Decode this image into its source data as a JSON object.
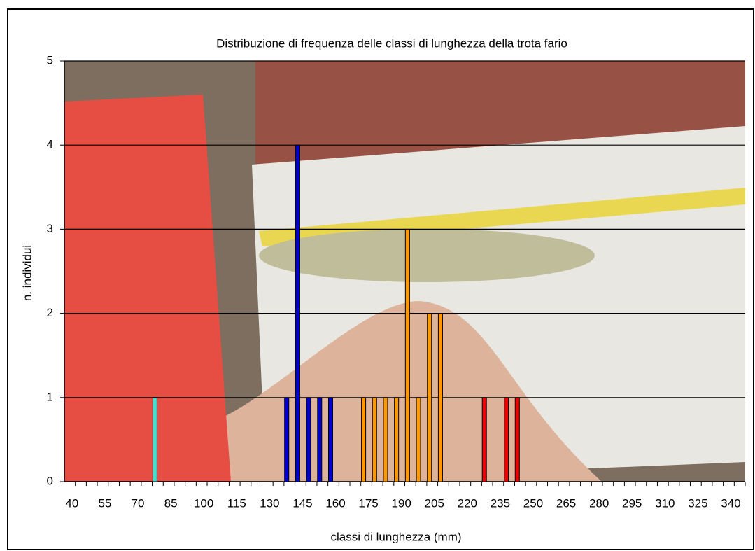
{
  "chart_data": {
    "type": "bar",
    "title": "Distribuzione di frequenza delle classi di lunghezza della trota fario",
    "x_label": "classi di lunghezza (mm)",
    "y_label": "n. individui",
    "categories": [
      "40",
      null,
      null,
      "55",
      null,
      null,
      "70",
      null,
      null,
      "85",
      null,
      null,
      "100",
      null,
      null,
      "115",
      null,
      null,
      "130",
      null,
      null,
      "145",
      null,
      null,
      "160",
      null,
      null,
      "175",
      null,
      null,
      "190",
      null,
      null,
      "205",
      null,
      null,
      "220",
      null,
      null,
      "235",
      null,
      null,
      "250",
      null,
      null,
      "265",
      null,
      null,
      "280",
      null,
      null,
      "295",
      null,
      null,
      "310",
      null,
      null,
      "325",
      null,
      null,
      "340",
      null
    ],
    "series": [
      {
        "color": "#40e0d0",
        "values": [
          null,
          null,
          null,
          null,
          null,
          null,
          null,
          null,
          1,
          null,
          null,
          null,
          null,
          null,
          null,
          null,
          null,
          null,
          null,
          null,
          null,
          null,
          null,
          null,
          null,
          null,
          null,
          null,
          null,
          null,
          null,
          null,
          null,
          null,
          null,
          null,
          null,
          null,
          null,
          null,
          null,
          null,
          null,
          null,
          null,
          null,
          null,
          null,
          null,
          null,
          null,
          null,
          null,
          null,
          null,
          null,
          null,
          null,
          null,
          null,
          null,
          null
        ]
      },
      {
        "color": "#0000cc",
        "values": [
          null,
          null,
          null,
          null,
          null,
          null,
          null,
          null,
          null,
          null,
          null,
          null,
          null,
          null,
          null,
          null,
          null,
          null,
          null,
          null,
          1,
          4,
          1,
          1,
          1,
          null,
          null,
          null,
          null,
          null,
          null,
          null,
          null,
          null,
          null,
          null,
          null,
          null,
          null,
          null,
          null,
          null,
          null,
          null,
          null,
          null,
          null,
          null,
          null,
          null,
          null,
          null,
          null,
          null,
          null,
          null,
          null,
          null,
          null,
          null,
          null,
          null
        ]
      },
      {
        "color": "#ff9900",
        "values": [
          null,
          null,
          null,
          null,
          null,
          null,
          null,
          null,
          null,
          null,
          null,
          null,
          null,
          null,
          null,
          null,
          null,
          null,
          null,
          null,
          null,
          null,
          null,
          null,
          null,
          null,
          null,
          1,
          1,
          1,
          1,
          3,
          1,
          2,
          2,
          null,
          null,
          null,
          null,
          null,
          null,
          null,
          null,
          null,
          null,
          null,
          null,
          null,
          null,
          null,
          null,
          null,
          null,
          null,
          null,
          null,
          null,
          null,
          null,
          null,
          null,
          null
        ]
      },
      {
        "color": "#ee0000",
        "values": [
          null,
          null,
          null,
          null,
          null,
          null,
          null,
          null,
          null,
          null,
          null,
          null,
          null,
          null,
          null,
          null,
          null,
          null,
          null,
          null,
          null,
          null,
          null,
          null,
          null,
          null,
          null,
          null,
          null,
          null,
          null,
          null,
          null,
          null,
          null,
          null,
          null,
          null,
          1,
          null,
          1,
          1,
          null,
          null,
          null,
          null,
          null,
          null,
          null,
          null,
          null,
          null,
          null,
          null,
          null,
          null,
          null,
          null,
          null,
          null,
          null,
          null
        ]
      }
    ],
    "ylim": [
      0,
      5
    ],
    "yticks": [
      0,
      1,
      2,
      3,
      4,
      5
    ],
    "grid": true
  }
}
